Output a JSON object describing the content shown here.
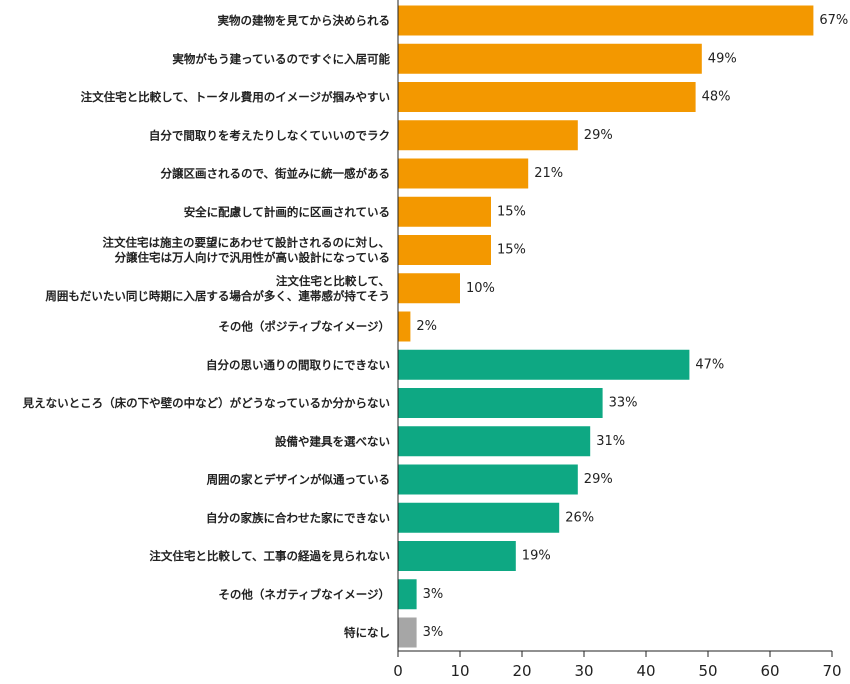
{
  "chart_data": {
    "type": "bar",
    "orientation": "horizontal",
    "title": "",
    "xlabel": "",
    "ylabel": "",
    "xlim": [
      0,
      70
    ],
    "x_ticks": [
      0,
      10,
      20,
      30,
      40,
      50,
      60,
      70
    ],
    "value_suffix": "%",
    "grid": false,
    "colors": {
      "positive": "#F39800",
      "negative": "#0EA883",
      "neutral": "#A6A6A6"
    },
    "bars": [
      {
        "label": [
          "実物の建物を見てから決められる"
        ],
        "value": 67,
        "group": "positive"
      },
      {
        "label": [
          "実物がもう建っているのですぐに入居可能"
        ],
        "value": 49,
        "group": "positive"
      },
      {
        "label": [
          "注文住宅と比較して、トータル費用のイメージが掴みやすい"
        ],
        "value": 48,
        "group": "positive"
      },
      {
        "label": [
          "自分で間取りを考えたりしなくていいのでラク"
        ],
        "value": 29,
        "group": "positive"
      },
      {
        "label": [
          "分譲区画されるので、街並みに統一感がある"
        ],
        "value": 21,
        "group": "positive"
      },
      {
        "label": [
          "安全に配慮して計画的に区画されている"
        ],
        "value": 15,
        "group": "positive"
      },
      {
        "label": [
          "注文住宅は施主の要望にあわせて設計されるのに対し、",
          "分譲住宅は万人向けで汎用性が高い設計になっている"
        ],
        "value": 15,
        "group": "positive"
      },
      {
        "label": [
          "注文住宅と比較して、",
          "周囲もだいたい同じ時期に入居する場合が多く、連帯感が持てそう"
        ],
        "value": 10,
        "group": "positive"
      },
      {
        "label": [
          "その他（ポジティブなイメージ）"
        ],
        "value": 2,
        "group": "positive"
      },
      {
        "label": [
          "自分の思い通りの間取りにできない"
        ],
        "value": 47,
        "group": "negative"
      },
      {
        "label": [
          "見えないところ（床の下や壁の中など）がどうなっているか分からない"
        ],
        "value": 33,
        "group": "negative"
      },
      {
        "label": [
          "設備や建具を選べない"
        ],
        "value": 31,
        "group": "negative"
      },
      {
        "label": [
          "周囲の家とデザインが似通っている"
        ],
        "value": 29,
        "group": "negative"
      },
      {
        "label": [
          "自分の家族に合わせた家にできない"
        ],
        "value": 26,
        "group": "negative"
      },
      {
        "label": [
          "注文住宅と比較して、工事の経過を見られない"
        ],
        "value": 19,
        "group": "negative"
      },
      {
        "label": [
          "その他（ネガティブなイメージ）"
        ],
        "value": 3,
        "group": "negative"
      },
      {
        "label": [
          "特になし"
        ],
        "value": 3,
        "group": "neutral"
      }
    ]
  }
}
